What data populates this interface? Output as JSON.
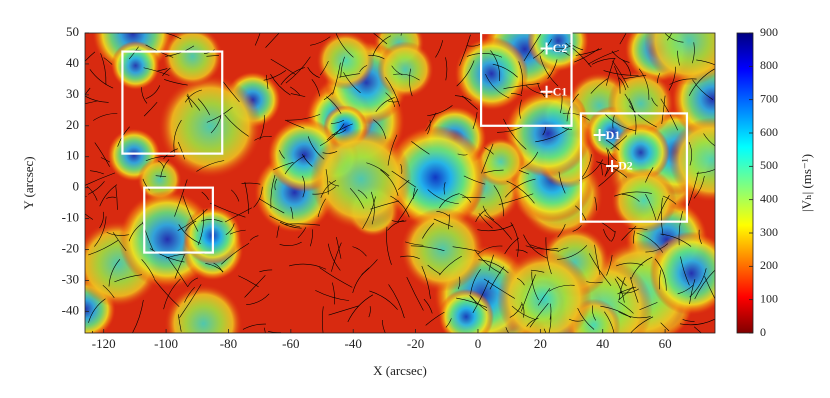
{
  "chart_data": {
    "type": "heatmap",
    "xlabel": "X (arcsec)",
    "ylabel": "Y (arcsec)",
    "xlim": [
      -126,
      76
    ],
    "ylim": [
      -47,
      50
    ],
    "xticks": [
      -120,
      -100,
      -80,
      -60,
      -40,
      -20,
      0,
      20,
      40,
      60
    ],
    "yticks": [
      -40,
      -30,
      -20,
      -10,
      0,
      10,
      20,
      30,
      40,
      50
    ],
    "colorbar": {
      "label": "|Vₕ| (ms⁻¹)",
      "lim": [
        0,
        900
      ],
      "ticks": [
        0,
        100,
        200,
        300,
        400,
        500,
        600,
        700,
        800,
        900
      ],
      "colormap": "jet"
    },
    "boxes": [
      {
        "x": [
          -114,
          -82
        ],
        "y": [
          11,
          44
        ]
      },
      {
        "x": [
          -107,
          -85
        ],
        "y": [
          -21,
          0
        ]
      },
      {
        "x": [
          1,
          30
        ],
        "y": [
          20,
          50
        ]
      },
      {
        "x": [
          33,
          67
        ],
        "y": [
          -11,
          24
        ]
      }
    ],
    "markers": [
      {
        "label": "C2",
        "x": 22,
        "y": 45
      },
      {
        "label": "C1",
        "x": 22,
        "y": 31
      },
      {
        "label": "D1",
        "x": 39,
        "y": 17
      },
      {
        "label": "D2",
        "x": 43,
        "y": 7
      }
    ]
  }
}
